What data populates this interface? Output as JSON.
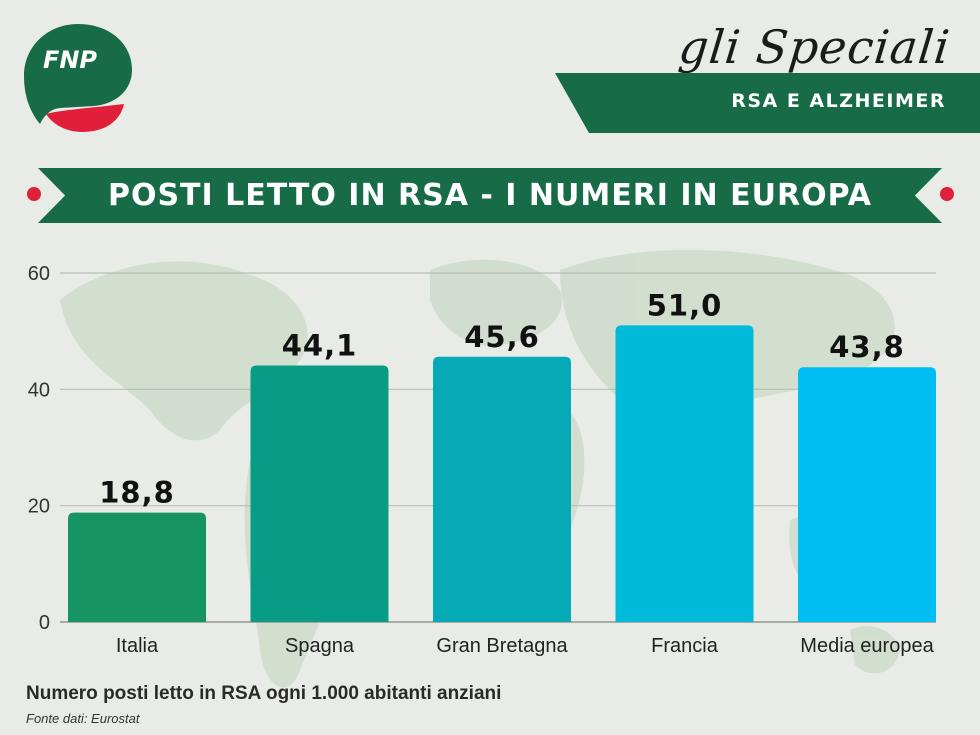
{
  "brand": {
    "logo_text": "FNP"
  },
  "header": {
    "series_title": "gli Speciali",
    "series_subtitle": "RSA E ALZHEIMER"
  },
  "colors": {
    "dark_green": "#176c47",
    "red": "#e0203a",
    "bar_colors": [
      "#179463",
      "#089c86",
      "#06a9b6",
      "#00bad9",
      "#00bdf2"
    ]
  },
  "chart_data": {
    "type": "bar",
    "title": "POSTI LETTO IN RSA - I NUMERI IN EUROPA",
    "categories": [
      "Italia",
      "Spagna",
      "Gran Bretagna",
      "Francia",
      "Media europea"
    ],
    "values": [
      18.8,
      44.1,
      45.6,
      51.0,
      43.8
    ],
    "value_labels": [
      "18,8",
      "44,1",
      "45,6",
      "51,0",
      "43,8"
    ],
    "yticks": [
      0,
      20,
      40,
      60
    ],
    "ylim": [
      0,
      60
    ],
    "grid": true,
    "xlabel": "",
    "ylabel": ""
  },
  "footer": {
    "caption": "Numero posti letto in RSA ogni 1.000 abitanti anziani",
    "source": "Fonte dati: Eurostat"
  }
}
